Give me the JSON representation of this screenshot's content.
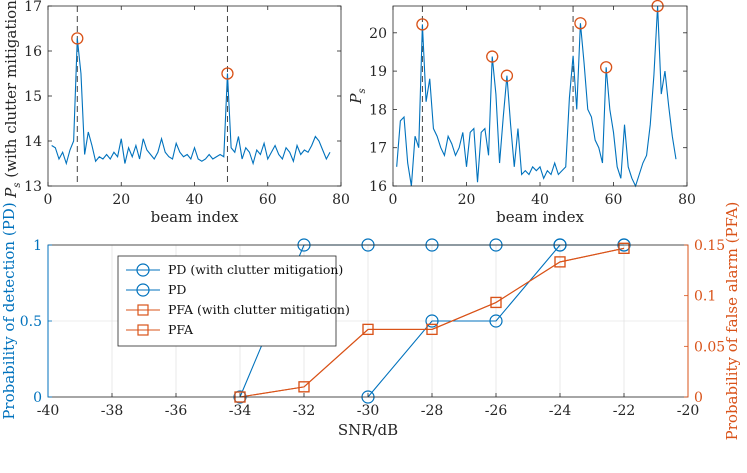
{
  "chart_data": [
    {
      "type": "line",
      "ylabel": "P_s (with clutter mitigation)",
      "ylabel_symbol": "P",
      "ylabel_sub": "s",
      "ylabel_suffix": " (with clutter mitigation)",
      "xlabel": "beam index",
      "xlim": [
        0,
        80
      ],
      "ylim": [
        13,
        17
      ],
      "xticks": [
        "0",
        "20",
        "40",
        "60",
        "80"
      ],
      "yticks": [
        "13",
        "14",
        "15",
        "16",
        "17"
      ],
      "series_color": "#0072BD",
      "marker_color": "#D95319",
      "dashed_x": [
        8,
        49
      ],
      "peaks": [
        {
          "x": 8,
          "y": 16.28
        },
        {
          "x": 49,
          "y": 15.5
        }
      ],
      "x": [
        1,
        2,
        3,
        4,
        5,
        6,
        7,
        8,
        9,
        10,
        11,
        12,
        13,
        14,
        15,
        16,
        17,
        18,
        19,
        20,
        21,
        22,
        23,
        24,
        25,
        26,
        27,
        28,
        29,
        30,
        31,
        32,
        33,
        34,
        35,
        36,
        37,
        38,
        39,
        40,
        41,
        42,
        43,
        44,
        45,
        46,
        47,
        48,
        49,
        50,
        51,
        52,
        53,
        54,
        55,
        56,
        57,
        58,
        59,
        60,
        61,
        62,
        63,
        64,
        65,
        66,
        67,
        68,
        69,
        70,
        71,
        72,
        73,
        74,
        75,
        76,
        77
      ],
      "y": [
        13.9,
        13.85,
        13.6,
        13.75,
        13.5,
        13.8,
        14.0,
        16.28,
        15.5,
        13.7,
        14.2,
        13.9,
        13.55,
        13.65,
        13.6,
        13.7,
        13.6,
        13.75,
        13.65,
        14.05,
        13.5,
        13.85,
        13.65,
        13.9,
        13.6,
        14.05,
        13.8,
        13.7,
        13.6,
        13.75,
        14.05,
        13.75,
        13.65,
        13.6,
        13.95,
        13.75,
        13.65,
        13.7,
        13.6,
        13.85,
        13.6,
        13.55,
        13.6,
        13.7,
        13.6,
        13.65,
        13.7,
        13.65,
        15.5,
        13.85,
        13.75,
        14.1,
        13.6,
        13.85,
        13.75,
        13.5,
        13.8,
        13.7,
        13.95,
        13.6,
        13.75,
        13.9,
        13.7,
        13.6,
        13.85,
        13.75,
        13.55,
        13.9,
        13.7,
        13.8,
        13.75,
        13.9,
        14.1,
        14.0,
        13.8,
        13.6,
        13.75
      ]
    },
    {
      "type": "line",
      "ylabel": "P_s",
      "ylabel_symbol": "P",
      "ylabel_sub": "s",
      "xlabel": "beam index",
      "xlim": [
        0,
        80
      ],
      "ylim": [
        16,
        20.7
      ],
      "xticks": [
        "0",
        "20",
        "40",
        "60",
        "80"
      ],
      "yticks": [
        "16",
        "17",
        "18",
        "19",
        "20"
      ],
      "series_color": "#0072BD",
      "marker_color": "#D95319",
      "dashed_x": [
        8,
        49
      ],
      "peaks": [
        {
          "x": 8,
          "y": 20.22
        },
        {
          "x": 27,
          "y": 19.38
        },
        {
          "x": 31,
          "y": 18.88
        },
        {
          "x": 51,
          "y": 20.25
        },
        {
          "x": 58,
          "y": 19.1
        },
        {
          "x": 72,
          "y": 20.7
        }
      ],
      "x": [
        1,
        2,
        3,
        4,
        5,
        6,
        7,
        8,
        9,
        10,
        11,
        12,
        13,
        14,
        15,
        16,
        17,
        18,
        19,
        20,
        21,
        22,
        23,
        24,
        25,
        26,
        27,
        28,
        29,
        30,
        31,
        32,
        33,
        34,
        35,
        36,
        37,
        38,
        39,
        40,
        41,
        42,
        43,
        44,
        45,
        46,
        47,
        48,
        49,
        50,
        51,
        52,
        53,
        54,
        55,
        56,
        57,
        58,
        59,
        60,
        61,
        62,
        63,
        64,
        65,
        66,
        67,
        68,
        69,
        70,
        71,
        72,
        73,
        74,
        75,
        76,
        77
      ],
      "y": [
        16.5,
        17.7,
        17.8,
        16.6,
        16.0,
        17.3,
        17.0,
        20.22,
        18.2,
        18.8,
        17.5,
        17.3,
        17.0,
        16.8,
        17.3,
        17.1,
        16.8,
        17.0,
        17.4,
        16.5,
        17.4,
        17.5,
        16.1,
        17.4,
        17.5,
        16.8,
        19.38,
        18.4,
        16.6,
        17.8,
        18.88,
        17.6,
        16.5,
        17.5,
        16.3,
        16.4,
        16.3,
        16.5,
        16.4,
        16.5,
        16.2,
        16.4,
        16.3,
        16.6,
        16.3,
        16.4,
        16.5,
        18.3,
        19.4,
        18.0,
        20.25,
        19.2,
        18.0,
        17.8,
        17.2,
        17.0,
        16.6,
        19.1,
        18.0,
        17.4,
        16.5,
        16.2,
        17.6,
        16.5,
        16.2,
        16.0,
        16.3,
        16.6,
        16.8,
        17.6,
        18.9,
        20.7,
        18.4,
        19.0,
        18.1,
        17.3,
        16.7
      ]
    },
    {
      "type": "line",
      "xlabel": "SNR/dB",
      "ylabel_left": "Probability of detection (PD)",
      "ylabel_right": "Probability of false alarm (PFA)",
      "xlim": [
        -40,
        -20
      ],
      "ylim_left": [
        0,
        1
      ],
      "ylim_right": [
        0,
        0.15
      ],
      "xticks": [
        "-40",
        "-38",
        "-36",
        "-34",
        "-32",
        "-30",
        "-28",
        "-26",
        "-24",
        "-22",
        "-20"
      ],
      "yticks_left": [
        "0",
        "0.5",
        "1"
      ],
      "yticks_right": [
        "0",
        "0.05",
        "0.1",
        "0.15"
      ],
      "left_color": "#0072BD",
      "right_color": "#D95319",
      "series": [
        {
          "name": "PD (with clutter mitigation)",
          "axis": "left",
          "marker": "circle",
          "x": [
            -34,
            -32,
            -30,
            -28,
            -26,
            -24,
            -22
          ],
          "y": [
            0,
            1,
            1,
            1,
            1,
            1,
            1
          ]
        },
        {
          "name": "PD",
          "axis": "left",
          "marker": "circle",
          "x": [
            -30,
            -28,
            -26,
            -24,
            -22
          ],
          "y": [
            0,
            0.5,
            0.5,
            1,
            1
          ]
        },
        {
          "name": "PFA (with clutter mitigation)",
          "axis": "right",
          "marker": "square",
          "x": [
            -34,
            -32,
            -30,
            -28,
            -26,
            -24,
            -22
          ],
          "y": [
            0,
            0.01,
            0.0667,
            0.0667,
            0.0933,
            0.1333,
            0.1467
          ]
        },
        {
          "name": "PFA",
          "axis": "right",
          "marker": "square",
          "x": [
            -34,
            -32,
            -30,
            -28,
            -26,
            -24,
            -22
          ],
          "y": [
            0,
            0.01,
            0.0667,
            0.0667,
            0.0933,
            0.1333,
            0.1467
          ]
        }
      ]
    }
  ]
}
